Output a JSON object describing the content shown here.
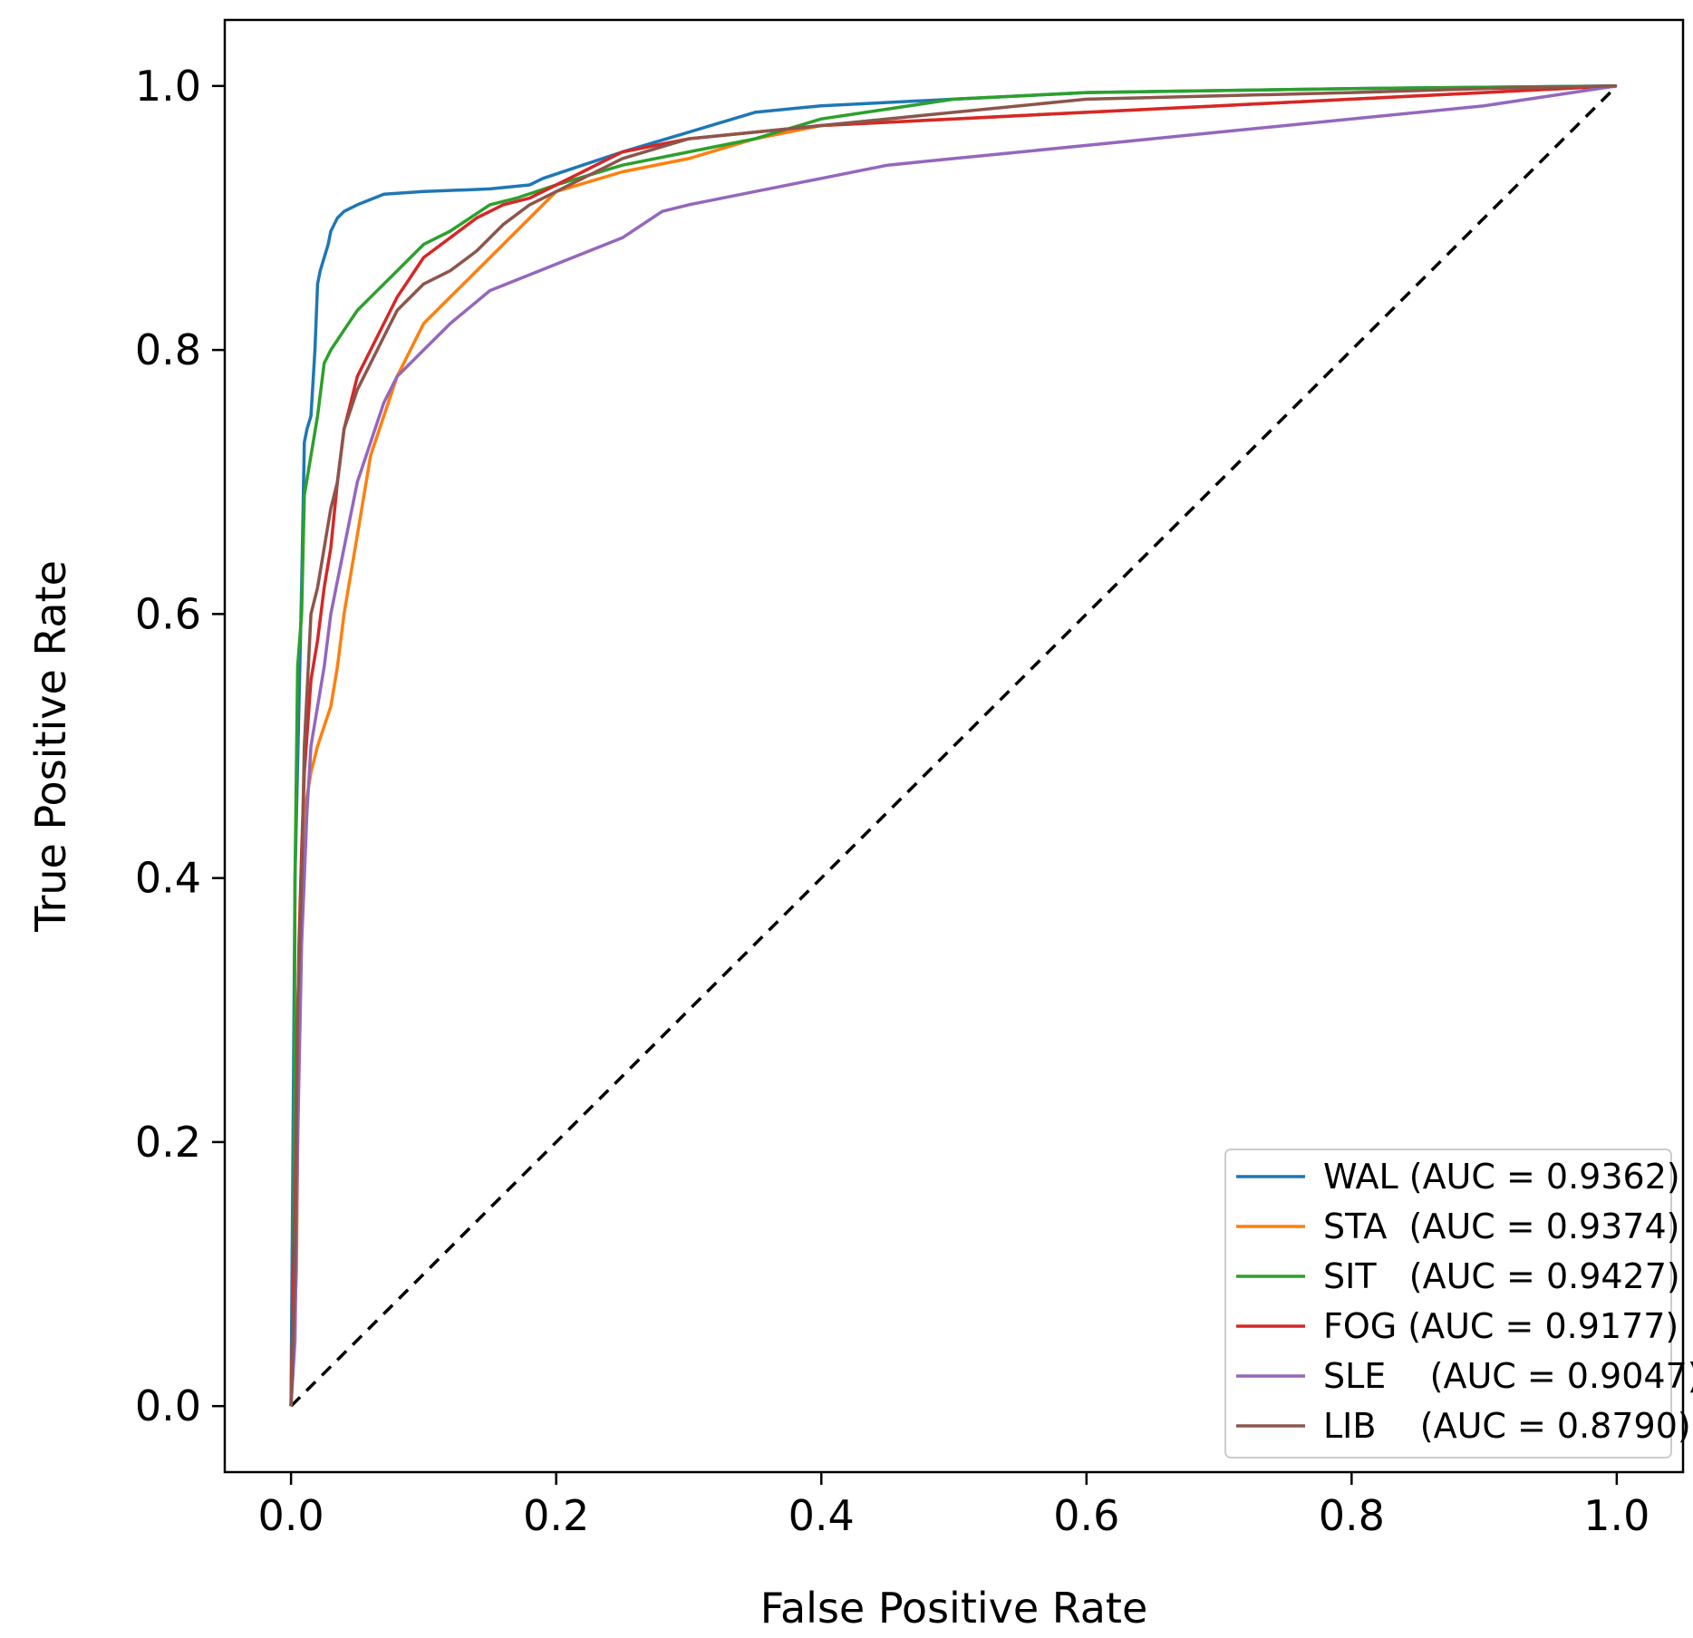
{
  "chart_data": {
    "type": "line",
    "title": "",
    "xlabel": "False Positive Rate",
    "ylabel": "True Positive Rate",
    "xlim": [
      -0.05,
      1.05
    ],
    "ylim": [
      -0.05,
      1.05
    ],
    "xticks": [
      0.0,
      0.2,
      0.4,
      0.6,
      0.8,
      1.0
    ],
    "yticks": [
      0.0,
      0.2,
      0.4,
      0.6,
      0.8,
      1.0
    ],
    "xtick_labels": [
      "0.0",
      "0.2",
      "0.4",
      "0.6",
      "0.8",
      "1.0"
    ],
    "ytick_labels": [
      "0.0",
      "0.2",
      "0.4",
      "0.6",
      "0.8",
      "1.0"
    ],
    "legend_position": "bottom-right",
    "series": [
      {
        "name": "WAL (AUC = 0.9362)",
        "color": "#1f77b4",
        "x": [
          0.0,
          0.003,
          0.008,
          0.01,
          0.012,
          0.015,
          0.018,
          0.02,
          0.022,
          0.025,
          0.028,
          0.03,
          0.035,
          0.04,
          0.05,
          0.07,
          0.1,
          0.15,
          0.18,
          0.19,
          0.22,
          0.25,
          0.3,
          0.35,
          0.4,
          0.5,
          0.6,
          0.8,
          1.0
        ],
        "y": [
          0.0,
          0.4,
          0.62,
          0.73,
          0.74,
          0.75,
          0.8,
          0.85,
          0.86,
          0.87,
          0.88,
          0.89,
          0.9,
          0.905,
          0.91,
          0.918,
          0.92,
          0.922,
          0.925,
          0.93,
          0.94,
          0.95,
          0.965,
          0.98,
          0.985,
          0.99,
          0.995,
          0.998,
          1.0
        ]
      },
      {
        "name": "STA  (AUC = 0.9374)",
        "color": "#ff7f0e",
        "x": [
          0.0,
          0.004,
          0.006,
          0.008,
          0.01,
          0.015,
          0.02,
          0.03,
          0.035,
          0.04,
          0.05,
          0.06,
          0.07,
          0.08,
          0.09,
          0.1,
          0.12,
          0.14,
          0.16,
          0.18,
          0.2,
          0.25,
          0.3,
          0.35,
          0.4,
          0.5,
          0.6,
          0.7,
          0.8,
          0.9,
          1.0
        ],
        "y": [
          0.0,
          0.1,
          0.3,
          0.4,
          0.45,
          0.48,
          0.5,
          0.53,
          0.56,
          0.6,
          0.66,
          0.72,
          0.75,
          0.78,
          0.8,
          0.82,
          0.84,
          0.86,
          0.88,
          0.9,
          0.92,
          0.935,
          0.945,
          0.96,
          0.97,
          0.975,
          0.98,
          0.985,
          0.99,
          0.995,
          1.0
        ]
      },
      {
        "name": "SIT   (AUC = 0.9427)",
        "color": "#2ca02c",
        "x": [
          0.0,
          0.002,
          0.003,
          0.005,
          0.008,
          0.01,
          0.015,
          0.02,
          0.025,
          0.03,
          0.04,
          0.05,
          0.06,
          0.08,
          0.1,
          0.12,
          0.15,
          0.17,
          0.2,
          0.25,
          0.3,
          0.35,
          0.4,
          0.5,
          0.6,
          0.8,
          1.0
        ],
        "y": [
          0.0,
          0.1,
          0.4,
          0.56,
          0.6,
          0.69,
          0.72,
          0.75,
          0.79,
          0.8,
          0.815,
          0.83,
          0.84,
          0.86,
          0.88,
          0.89,
          0.91,
          0.915,
          0.925,
          0.94,
          0.95,
          0.96,
          0.975,
          0.99,
          0.995,
          0.998,
          1.0
        ]
      },
      {
        "name": "FOG (AUC = 0.9177)",
        "color": "#d62728",
        "x": [
          0.0,
          0.003,
          0.006,
          0.008,
          0.01,
          0.015,
          0.02,
          0.025,
          0.03,
          0.035,
          0.04,
          0.045,
          0.05,
          0.06,
          0.07,
          0.08,
          0.09,
          0.1,
          0.12,
          0.14,
          0.16,
          0.18,
          0.2,
          0.22,
          0.25,
          0.3,
          0.35,
          0.4,
          0.5,
          0.6,
          0.7,
          0.8,
          0.9,
          1.0
        ],
        "y": [
          0.0,
          0.15,
          0.35,
          0.42,
          0.48,
          0.55,
          0.58,
          0.62,
          0.65,
          0.7,
          0.74,
          0.76,
          0.78,
          0.8,
          0.82,
          0.84,
          0.855,
          0.87,
          0.885,
          0.9,
          0.91,
          0.915,
          0.925,
          0.935,
          0.95,
          0.96,
          0.965,
          0.97,
          0.975,
          0.98,
          0.985,
          0.99,
          0.995,
          1.0
        ]
      },
      {
        "name": "SLE    (AUC = 0.9047)",
        "color": "#9467bd",
        "x": [
          0.0,
          0.003,
          0.005,
          0.008,
          0.012,
          0.015,
          0.02,
          0.025,
          0.03,
          0.04,
          0.05,
          0.06,
          0.07,
          0.08,
          0.1,
          0.12,
          0.15,
          0.2,
          0.25,
          0.28,
          0.3,
          0.35,
          0.4,
          0.45,
          0.5,
          0.6,
          0.7,
          0.8,
          0.9,
          1.0
        ],
        "y": [
          0.0,
          0.05,
          0.2,
          0.35,
          0.45,
          0.5,
          0.53,
          0.56,
          0.6,
          0.65,
          0.7,
          0.73,
          0.76,
          0.78,
          0.8,
          0.82,
          0.845,
          0.865,
          0.885,
          0.905,
          0.91,
          0.92,
          0.93,
          0.94,
          0.945,
          0.955,
          0.965,
          0.975,
          0.985,
          1.0
        ]
      },
      {
        "name": "LIB    (AUC = 0.8790)",
        "color": "#8c564b",
        "x": [
          0.0,
          0.003,
          0.005,
          0.008,
          0.01,
          0.015,
          0.02,
          0.025,
          0.03,
          0.035,
          0.04,
          0.05,
          0.06,
          0.07,
          0.08,
          0.1,
          0.12,
          0.14,
          0.16,
          0.18,
          0.2,
          0.25,
          0.3,
          0.4,
          0.5,
          0.6,
          0.8,
          0.9,
          1.0
        ],
        "y": [
          0.0,
          0.1,
          0.3,
          0.4,
          0.5,
          0.6,
          0.62,
          0.65,
          0.68,
          0.7,
          0.74,
          0.77,
          0.79,
          0.81,
          0.83,
          0.85,
          0.86,
          0.875,
          0.895,
          0.91,
          0.92,
          0.945,
          0.96,
          0.97,
          0.98,
          0.99,
          0.995,
          0.998,
          1.0
        ]
      }
    ],
    "reference_line": {
      "x": [
        0.0,
        1.0
      ],
      "y": [
        0.0,
        1.0
      ],
      "color": "#000000",
      "style": "dashed"
    }
  }
}
